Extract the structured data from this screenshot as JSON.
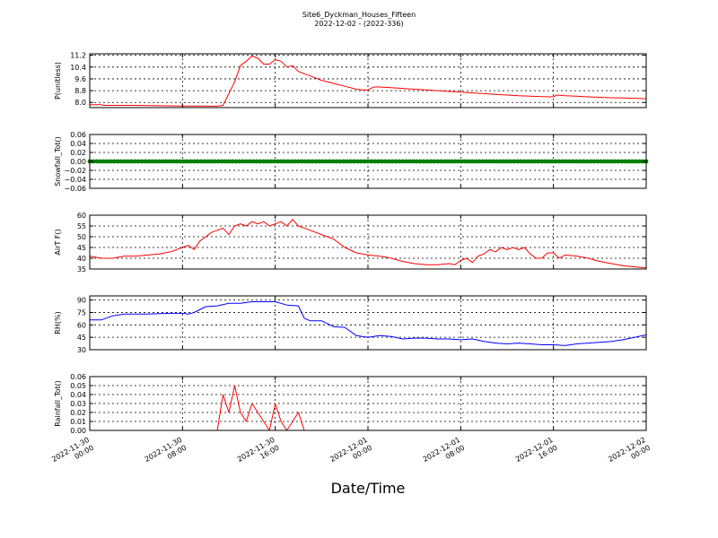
{
  "title": "Site6_Dyckman_Houses_Fifteen",
  "subtitle": "2022-12-02 - (2022-336)",
  "xlabel": "Date/Time",
  "x_ticks": [
    {
      "line1": "2022-11-30",
      "line2": "00:00"
    },
    {
      "line1": "2022-11-30",
      "line2": "08:00"
    },
    {
      "line1": "2022-11-30",
      "line2": "16:00"
    },
    {
      "line1": "2022-12-01",
      "line2": "00:00"
    },
    {
      "line1": "2022-12-01",
      "line2": "08:00"
    },
    {
      "line1": "2022-12-01",
      "line2": "16:00"
    },
    {
      "line1": "2022-12-02",
      "line2": "00:00"
    }
  ],
  "chart_data": [
    {
      "type": "line",
      "ylabel": "P(unitless)",
      "ylim": [
        7.65,
        11.3
      ],
      "yticks": [
        "8.0",
        "8.8",
        "9.6",
        "10.4",
        "11.2"
      ],
      "ytick_values": [
        8.0,
        8.8,
        9.6,
        10.4,
        11.2
      ],
      "xlim": [
        0,
        48
      ],
      "grid": true,
      "series": [
        {
          "color": "#ff0000",
          "x": [
            0,
            1,
            1.2,
            2,
            4,
            6,
            8,
            10,
            11,
            11.5,
            12,
            12.5,
            13,
            13.5,
            14,
            14.5,
            15,
            15.5,
            16,
            16.5,
            17,
            17.5,
            18,
            19,
            20,
            21,
            22,
            23,
            23.5,
            24,
            24.5,
            25,
            26,
            27,
            28,
            29,
            30,
            31,
            32,
            33,
            34,
            35,
            36,
            37,
            39,
            40,
            40.3,
            41,
            42,
            43,
            44,
            45,
            46,
            47,
            48
          ],
          "values": [
            7.85,
            7.85,
            7.8,
            7.8,
            7.8,
            7.78,
            7.76,
            7.75,
            7.75,
            7.8,
            8.6,
            9.4,
            10.5,
            10.8,
            11.15,
            11.0,
            10.6,
            10.6,
            10.9,
            10.8,
            10.4,
            10.5,
            10.1,
            9.8,
            9.5,
            9.3,
            9.1,
            8.9,
            8.85,
            8.85,
            9.05,
            9.05,
            9.0,
            8.95,
            8.9,
            8.85,
            8.8,
            8.75,
            8.7,
            8.65,
            8.6,
            8.55,
            8.5,
            8.45,
            8.4,
            8.38,
            8.5,
            8.45,
            8.42,
            8.38,
            8.35,
            8.32,
            8.3,
            8.28,
            8.25
          ]
        }
      ]
    },
    {
      "type": "line",
      "ylabel": "Snowfall_Tot()",
      "ylim": [
        -0.06,
        0.06
      ],
      "yticks": [
        "−0.06",
        "−0.04",
        "−0.02",
        "0.00",
        "0.02",
        "0.04",
        "0.06"
      ],
      "ytick_values": [
        -0.06,
        -0.04,
        -0.02,
        0.0,
        0.02,
        0.04,
        0.06
      ],
      "xlim": [
        0,
        48
      ],
      "grid": true,
      "series": [
        {
          "color": "#008000",
          "marker": "dot",
          "x": [
            0,
            48
          ],
          "values": [
            0.0,
            0.0
          ]
        }
      ]
    },
    {
      "type": "line",
      "ylabel": "AirT F()",
      "ylim": [
        35,
        60
      ],
      "yticks": [
        "35",
        "40",
        "45",
        "50",
        "55",
        "60"
      ],
      "ytick_values": [
        35,
        40,
        45,
        50,
        55,
        60
      ],
      "xlim": [
        0,
        48
      ],
      "grid": true,
      "series": [
        {
          "color": "#ff0000",
          "x": [
            0,
            1,
            2,
            3,
            4,
            5,
            6,
            7,
            8,
            8.5,
            9,
            9.5,
            10,
            10.5,
            11,
            11.5,
            12,
            12.5,
            13,
            13.5,
            14,
            14.5,
            15,
            15.5,
            16,
            16.5,
            17,
            17.5,
            18,
            19,
            20,
            21,
            22,
            23,
            24,
            25,
            26,
            27,
            28,
            29,
            30,
            31,
            31.5,
            32,
            32.5,
            33,
            33.5,
            34,
            34.5,
            35,
            35.5,
            36,
            36.5,
            37,
            37.5,
            38,
            38.5,
            39,
            39.5,
            40,
            40.5,
            41,
            42,
            43,
            44,
            45,
            46,
            47,
            48
          ],
          "values": [
            41,
            40,
            40,
            41,
            41,
            41.5,
            42,
            43,
            45,
            46,
            44,
            48,
            50,
            52,
            53,
            54,
            51,
            55,
            56,
            55,
            57,
            56,
            57,
            55,
            56,
            57,
            55,
            58,
            55,
            53,
            51,
            49,
            45,
            42.5,
            41.5,
            41,
            40,
            38.5,
            37.5,
            37,
            37,
            37.5,
            37,
            39,
            40,
            38,
            41,
            42,
            44,
            43,
            45,
            44,
            45,
            44,
            45,
            42,
            40,
            40,
            42.5,
            42.5,
            40,
            41.5,
            41,
            40,
            38.5,
            37.5,
            36.5,
            36,
            35.5
          ]
        }
      ]
    },
    {
      "type": "line",
      "ylabel": "RH(%)",
      "ylim": [
        30,
        95
      ],
      "yticks": [
        "30",
        "45",
        "60",
        "75",
        "90"
      ],
      "ytick_values": [
        30,
        45,
        60,
        75,
        90
      ],
      "xlim": [
        0,
        48
      ],
      "grid": true,
      "series": [
        {
          "color": "#0000ff",
          "x": [
            0,
            1,
            2,
            3,
            4,
            5,
            6,
            7,
            8,
            8.5,
            9,
            10,
            11,
            12,
            13,
            14,
            15,
            16,
            17,
            18,
            18.5,
            19,
            20,
            21,
            22,
            23,
            24,
            25,
            26,
            27,
            28,
            29,
            30,
            31,
            32,
            33,
            34,
            35,
            36,
            37,
            38,
            39,
            40,
            41,
            42,
            43,
            44,
            45,
            46,
            47,
            48
          ],
          "values": [
            66,
            66,
            71,
            73,
            73,
            73,
            73.5,
            74,
            74,
            73,
            75,
            82,
            83,
            86,
            86,
            88,
            88,
            88,
            84,
            83,
            68,
            65,
            65,
            58,
            57,
            47,
            45,
            47,
            46,
            43,
            44,
            44,
            43,
            43,
            42,
            43,
            40,
            38,
            37,
            38,
            37,
            36,
            36,
            35,
            37,
            38,
            39,
            40,
            42,
            45,
            48
          ]
        }
      ]
    },
    {
      "type": "line",
      "ylabel": "Rainfall_Tot()",
      "ylim": [
        0,
        0.06
      ],
      "yticks": [
        "0.00",
        "0.01",
        "0.02",
        "0.03",
        "0.04",
        "0.05",
        "0.06"
      ],
      "ytick_values": [
        0.0,
        0.01,
        0.02,
        0.03,
        0.04,
        0.05,
        0.06
      ],
      "xlim": [
        0,
        48
      ],
      "grid": true,
      "series": [
        {
          "color": "#ff0000",
          "x": [
            0,
            11,
            11.5,
            12,
            12.5,
            13,
            13.5,
            14,
            14.5,
            15,
            15.5,
            16,
            16.5,
            17,
            17.5,
            18,
            18.5,
            19,
            20,
            48
          ],
          "values": [
            0,
            0,
            0.04,
            0.02,
            0.05,
            0.02,
            0.01,
            0.03,
            0.02,
            0.01,
            0,
            0.03,
            0.01,
            0,
            0.01,
            0.02,
            0,
            0,
            0,
            0
          ]
        }
      ]
    }
  ]
}
